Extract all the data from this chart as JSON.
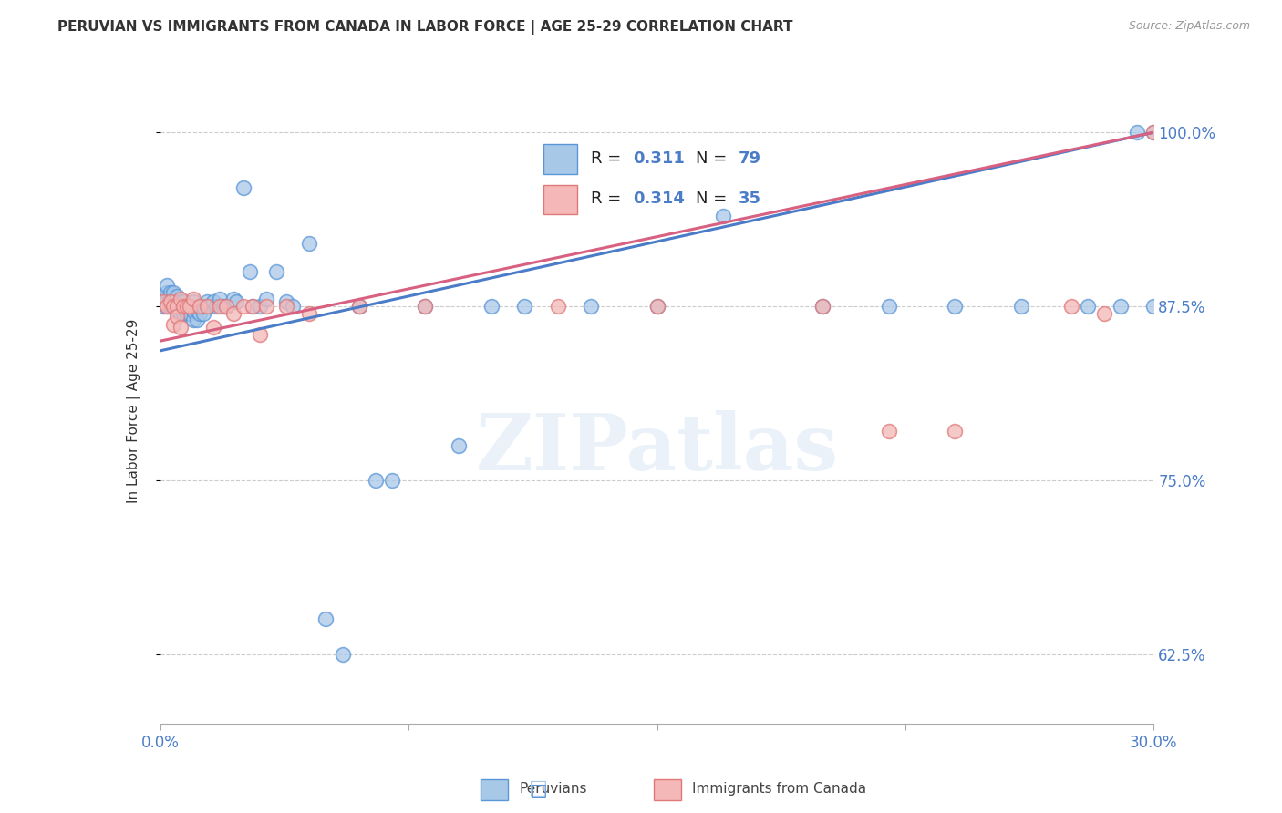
{
  "title": "PERUVIAN VS IMMIGRANTS FROM CANADA IN LABOR FORCE | AGE 25-29 CORRELATION CHART",
  "source": "Source: ZipAtlas.com",
  "ylabel": "In Labor Force | Age 25-29",
  "xmin": 0.0,
  "xmax": 0.3,
  "ymin": 0.575,
  "ymax": 1.025,
  "peruvian_color_face": "#a8c8e8",
  "peruvian_color_edge": "#5a96d8",
  "canada_color_face": "#f4b8b8",
  "canada_color_edge": "#e07878",
  "line_color_peruvian": "#4a7cc8",
  "line_color_canada": "#d86080",
  "watermark": "ZIPatlas",
  "peruvian_x": [
    0.001,
    0.001,
    0.002,
    0.002,
    0.002,
    0.002,
    0.003,
    0.003,
    0.003,
    0.003,
    0.003,
    0.003,
    0.004,
    0.004,
    0.004,
    0.004,
    0.004,
    0.005,
    0.005,
    0.005,
    0.005,
    0.006,
    0.006,
    0.006,
    0.007,
    0.007,
    0.007,
    0.008,
    0.008,
    0.009,
    0.009,
    0.01,
    0.01,
    0.01,
    0.011,
    0.011,
    0.012,
    0.012,
    0.013,
    0.013,
    0.014,
    0.015,
    0.016,
    0.017,
    0.018,
    0.019,
    0.02,
    0.022,
    0.023,
    0.025,
    0.027,
    0.028,
    0.03,
    0.032,
    0.035,
    0.038,
    0.04,
    0.045,
    0.05,
    0.055,
    0.06,
    0.065,
    0.07,
    0.08,
    0.09,
    0.1,
    0.11,
    0.13,
    0.15,
    0.17,
    0.2,
    0.22,
    0.24,
    0.26,
    0.28,
    0.29,
    0.295,
    0.3,
    0.3
  ],
  "peruvian_y": [
    0.875,
    0.88,
    0.875,
    0.88,
    0.885,
    0.89,
    0.875,
    0.875,
    0.878,
    0.88,
    0.882,
    0.885,
    0.875,
    0.875,
    0.878,
    0.88,
    0.885,
    0.872,
    0.875,
    0.878,
    0.882,
    0.87,
    0.875,
    0.878,
    0.87,
    0.873,
    0.878,
    0.87,
    0.875,
    0.87,
    0.875,
    0.865,
    0.872,
    0.878,
    0.865,
    0.872,
    0.87,
    0.875,
    0.87,
    0.875,
    0.878,
    0.875,
    0.878,
    0.875,
    0.88,
    0.875,
    0.875,
    0.88,
    0.878,
    0.96,
    0.9,
    0.875,
    0.875,
    0.88,
    0.9,
    0.878,
    0.875,
    0.92,
    0.65,
    0.625,
    0.875,
    0.75,
    0.75,
    0.875,
    0.775,
    0.875,
    0.875,
    0.875,
    0.875,
    0.94,
    0.875,
    0.875,
    0.875,
    0.875,
    0.875,
    0.875,
    1.0,
    0.875,
    1.0
  ],
  "canada_x": [
    0.001,
    0.002,
    0.003,
    0.004,
    0.004,
    0.005,
    0.005,
    0.006,
    0.006,
    0.007,
    0.008,
    0.009,
    0.01,
    0.012,
    0.014,
    0.016,
    0.018,
    0.02,
    0.022,
    0.025,
    0.028,
    0.03,
    0.032,
    0.038,
    0.045,
    0.06,
    0.08,
    0.12,
    0.15,
    0.2,
    0.22,
    0.24,
    0.275,
    0.285,
    0.3
  ],
  "canada_y": [
    0.878,
    0.875,
    0.878,
    0.875,
    0.862,
    0.875,
    0.868,
    0.88,
    0.86,
    0.875,
    0.875,
    0.875,
    0.88,
    0.875,
    0.875,
    0.86,
    0.875,
    0.875,
    0.87,
    0.875,
    0.875,
    0.855,
    0.875,
    0.875,
    0.87,
    0.875,
    0.875,
    0.875,
    0.875,
    0.875,
    0.785,
    0.785,
    0.875,
    0.87,
    1.0
  ],
  "trend_p_x0": 0.0,
  "trend_p_y0": 0.843,
  "trend_p_x1": 0.3,
  "trend_p_y1": 1.0,
  "trend_c_x0": 0.0,
  "trend_c_y0": 0.85,
  "trend_c_x1": 0.3,
  "trend_c_y1": 1.0,
  "ytick_vals": [
    0.625,
    0.75,
    0.875,
    1.0
  ],
  "ytick_labels": [
    "62.5%",
    "75.0%",
    "87.5%",
    "100.0%"
  ],
  "xtick_vals": [
    0.0,
    0.075,
    0.15,
    0.225,
    0.3
  ],
  "xtick_labels": [
    "0.0%",
    "",
    "",
    "",
    "30.0%"
  ]
}
